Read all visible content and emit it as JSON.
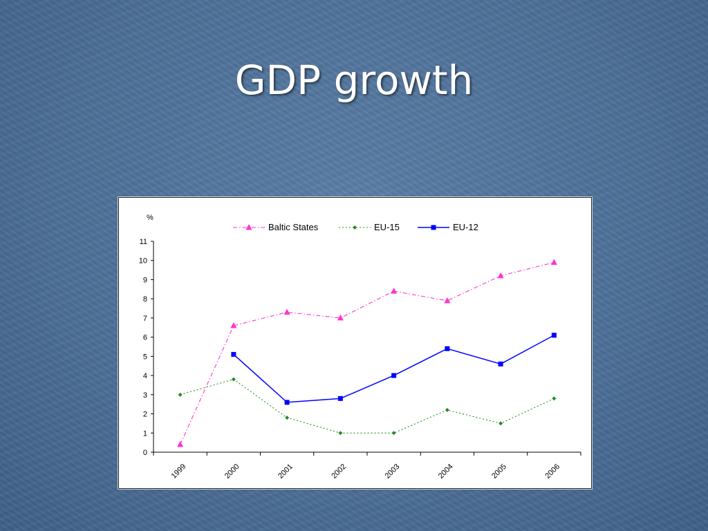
{
  "slide": {
    "title": "GDP growth"
  },
  "chart_data": {
    "type": "line",
    "ylabel": "%",
    "categories": [
      "1999",
      "2000",
      "2001",
      "2002",
      "2003",
      "2004",
      "2005",
      "2006"
    ],
    "ylim": [
      0,
      11
    ],
    "yticks": [
      0,
      1,
      2,
      3,
      4,
      5,
      6,
      7,
      8,
      9,
      10,
      11
    ],
    "legend_position": "top",
    "grid": false,
    "series": [
      {
        "name": "Baltic States",
        "color": "#ff33cc",
        "marker": "triangle",
        "dash": "dash-dot",
        "values": [
          0.4,
          6.6,
          7.3,
          7.0,
          8.4,
          7.9,
          9.2,
          9.9
        ]
      },
      {
        "name": "EU-15",
        "color": "#228b22",
        "marker": "diamond",
        "dash": "dotted",
        "values": [
          3.0,
          3.8,
          1.8,
          1.0,
          1.0,
          2.2,
          1.5,
          2.8
        ]
      },
      {
        "name": "EU-12",
        "color": "#0000ff",
        "marker": "square",
        "dash": "solid",
        "values": [
          null,
          5.1,
          2.6,
          2.8,
          4.0,
          5.4,
          4.6,
          6.1
        ]
      }
    ]
  }
}
